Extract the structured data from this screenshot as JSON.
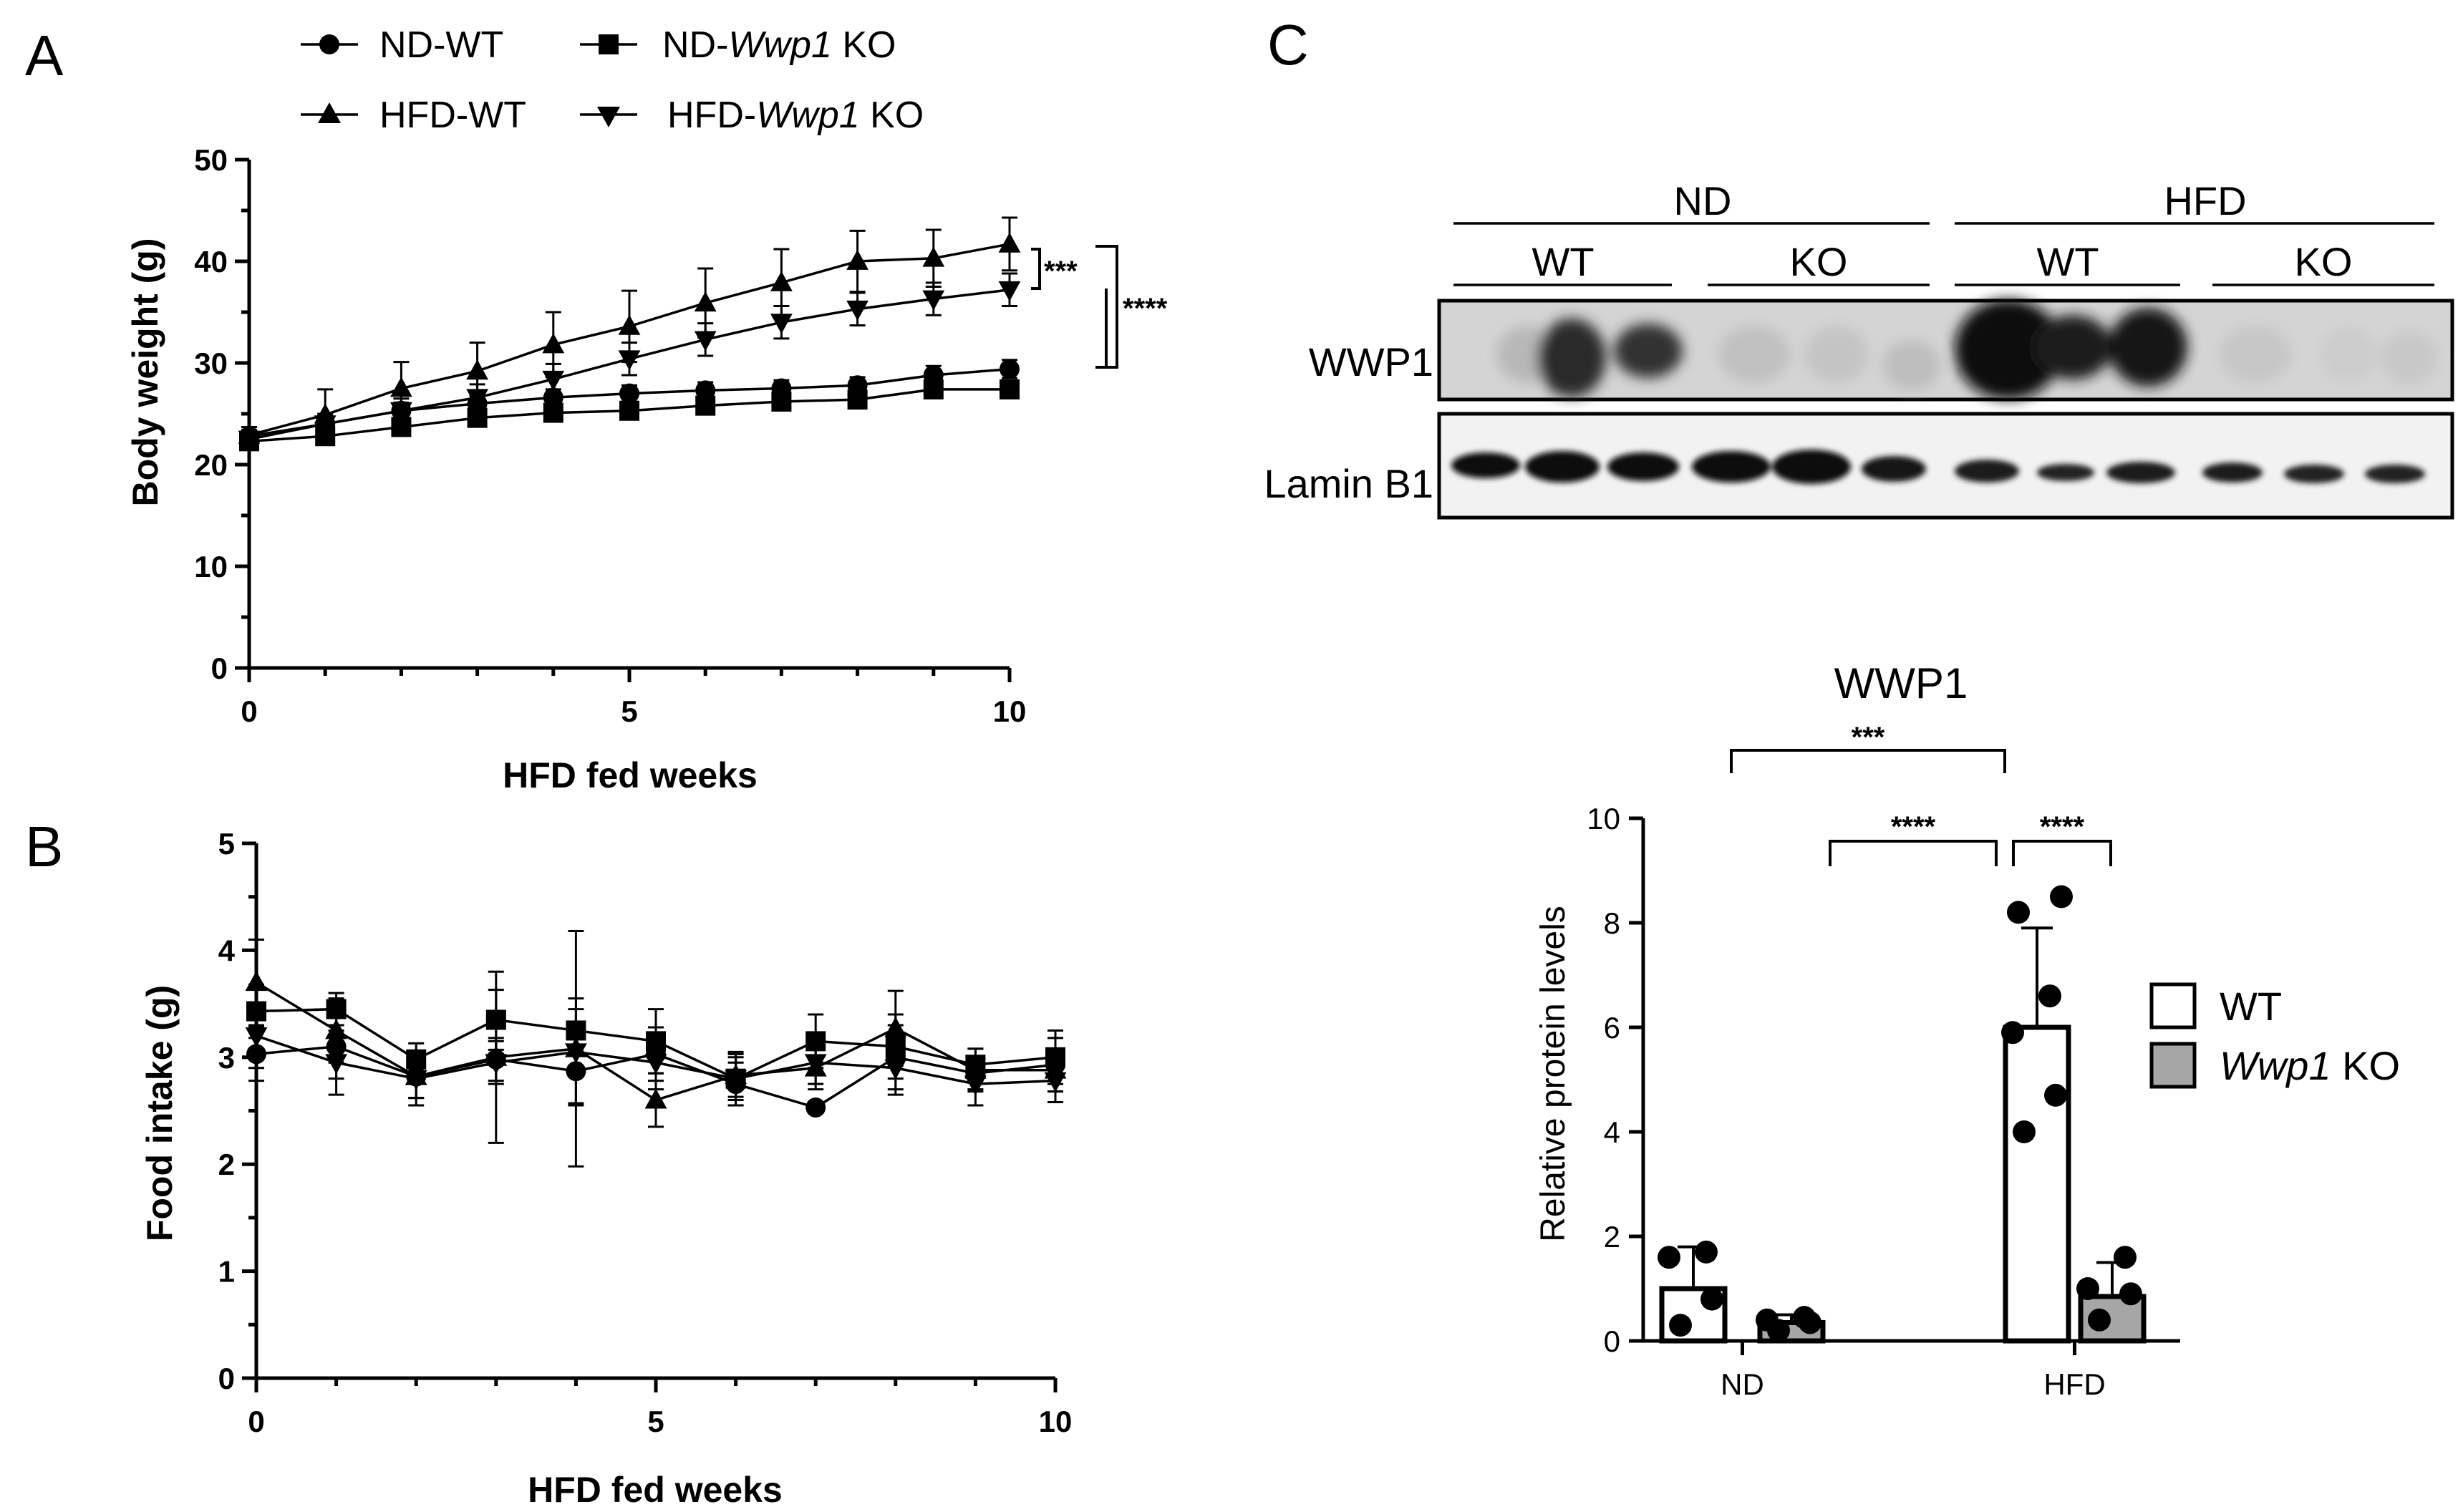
{
  "panel_labels": [
    "A",
    "B",
    "C"
  ],
  "legend": [
    {
      "label": "ND-WT",
      "marker": "circle"
    },
    {
      "label": "ND-",
      "italic": "Wwp1",
      "suffix": " KO",
      "marker": "square"
    },
    {
      "label": "HFD-WT",
      "marker": "triangle-up"
    },
    {
      "label": "HFD-",
      "italic": "Wwp1",
      "suffix": " KO",
      "marker": "triangle-down"
    }
  ],
  "chart_data": [
    {
      "panel": "A",
      "type": "line",
      "xlabel": "HFD fed weeks",
      "ylabel": "Body weight (g)",
      "xlim": [
        0,
        10
      ],
      "ylim": [
        0,
        50
      ],
      "xticks": [
        0,
        5,
        10
      ],
      "yticks": [
        0,
        10,
        20,
        30,
        40,
        50
      ],
      "x": [
        0,
        1,
        2,
        3,
        4,
        5,
        6,
        7,
        8,
        9,
        10
      ],
      "series": [
        {
          "name": "ND-WT",
          "marker": "circle",
          "values": [
            22.8,
            24.0,
            25.3,
            26.0,
            26.6,
            27.0,
            27.3,
            27.5,
            27.8,
            28.8,
            29.4
          ],
          "err": [
            0.6,
            0.8,
            0.8,
            0.8,
            0.8,
            0.8,
            0.8,
            0.8,
            0.8,
            0.9,
            0.9
          ]
        },
        {
          "name": "ND-Wwp1 KO",
          "marker": "square",
          "values": [
            22.3,
            22.8,
            23.7,
            24.6,
            25.1,
            25.3,
            25.8,
            26.2,
            26.4,
            27.4,
            27.4
          ],
          "err": [
            0.5,
            0.6,
            0.6,
            0.6,
            0.7,
            0.7,
            0.7,
            0.7,
            0.7,
            0.7,
            0.7
          ]
        },
        {
          "name": "HFD-WT",
          "marker": "triangle-up",
          "values": [
            22.9,
            24.9,
            27.5,
            29.2,
            31.8,
            33.6,
            35.9,
            37.9,
            40.0,
            40.3,
            41.7
          ],
          "err": [
            0.8,
            2.5,
            2.6,
            2.8,
            3.2,
            3.5,
            3.4,
            3.3,
            3.0,
            2.8,
            2.6
          ]
        },
        {
          "name": "HFD-Wwp1 KO",
          "marker": "triangle-down",
          "values": [
            22.5,
            24.0,
            25.3,
            26.6,
            28.4,
            30.4,
            32.3,
            34.0,
            35.3,
            36.3,
            37.2
          ],
          "err": [
            0.6,
            1.0,
            1.2,
            1.3,
            1.5,
            1.6,
            1.6,
            1.6,
            1.6,
            1.6,
            1.6
          ]
        }
      ],
      "annotations": [
        "***",
        "****"
      ]
    },
    {
      "panel": "B",
      "type": "line",
      "xlabel": "HFD fed weeks",
      "ylabel": "Food intake (g)",
      "xlim": [
        0,
        10
      ],
      "ylim": [
        0,
        5
      ],
      "xticks": [
        0,
        5,
        10
      ],
      "yticks": [
        0,
        1,
        2,
        3,
        4,
        5
      ],
      "x": [
        0,
        1,
        2,
        3,
        4,
        5,
        6,
        7,
        8,
        9,
        10
      ],
      "series": [
        {
          "name": "ND-WT",
          "marker": "circle",
          "values": [
            3.03,
            3.1,
            2.82,
            2.98,
            2.87,
            3.03,
            2.75,
            2.53,
            3.0,
            2.85,
            2.93
          ],
          "err": [
            0.25,
            0.3,
            0.2,
            0.2,
            0.3,
            0.25,
            0.2,
            0.0,
            0.3,
            0.15,
            0.25
          ]
        },
        {
          "name": "ND-Wwp1 KO",
          "marker": "square",
          "values": [
            3.43,
            3.45,
            2.98,
            3.35,
            3.25,
            3.15,
            2.8,
            3.15,
            3.1,
            2.93,
            3.0
          ],
          "err": [
            0.25,
            0.15,
            0.15,
            0.28,
            0.2,
            0.3,
            0.25,
            0.25,
            0.3,
            0.15,
            0.25
          ]
        },
        {
          "name": "HFD-WT",
          "marker": "triangle-up",
          "values": [
            3.7,
            3.25,
            2.82,
            3.0,
            3.08,
            2.6,
            2.83,
            2.9,
            3.27,
            2.88,
            2.88
          ],
          "err": [
            0.4,
            0.3,
            0.2,
            0.8,
            1.1,
            0.25,
            0.2,
            0.2,
            0.35,
            0.2,
            0.2
          ]
        },
        {
          "name": "HFD-Wwp1 KO",
          "marker": "triangle-down",
          "values": [
            3.2,
            2.95,
            2.8,
            2.95,
            3.05,
            2.95,
            2.8,
            2.95,
            2.9,
            2.75,
            2.78
          ],
          "err": [
            0.3,
            0.3,
            0.25,
            0.2,
            0.5,
            0.25,
            0.2,
            0.2,
            0.25,
            0.2,
            0.2
          ]
        }
      ]
    },
    {
      "panel": "C",
      "type": "bar",
      "title": "WWP1",
      "ylabel": "Relative protein levels",
      "categories": [
        "ND",
        "HFD"
      ],
      "ylim": [
        0,
        10
      ],
      "yticks": [
        0,
        2,
        4,
        6,
        8,
        10
      ],
      "series": [
        {
          "name": "WT",
          "fill": "#ffffff",
          "values": [
            1.0,
            6.0
          ],
          "err": [
            0.8,
            1.9
          ],
          "points": [
            [
              0.3,
              0.8,
              1.6,
              1.7
            ],
            [
              4.0,
              4.7,
              5.9,
              6.6,
              8.2,
              8.5
            ]
          ]
        },
        {
          "name": "Wwp1 KO",
          "fill": "#a6a6a6",
          "values": [
            0.35,
            0.85
          ],
          "err": [
            0.15,
            0.65
          ],
          "points": [
            [
              0.2,
              0.35,
              0.4,
              0.45
            ],
            [
              0.4,
              0.9,
              1.0,
              1.6
            ]
          ]
        }
      ],
      "significance": [
        "***",
        "****",
        "****"
      ],
      "legend": [
        {
          "label": "WT",
          "fill": "#ffffff"
        },
        {
          "italic": "Wwp1",
          "suffix": " KO",
          "fill": "#a6a6a6"
        }
      ]
    }
  ],
  "blot": {
    "groups": [
      "ND",
      "HFD"
    ],
    "subgroups": [
      "WT",
      "KO",
      "WT",
      "KO"
    ],
    "rows": [
      "WWP1",
      "Lamin B1"
    ]
  }
}
